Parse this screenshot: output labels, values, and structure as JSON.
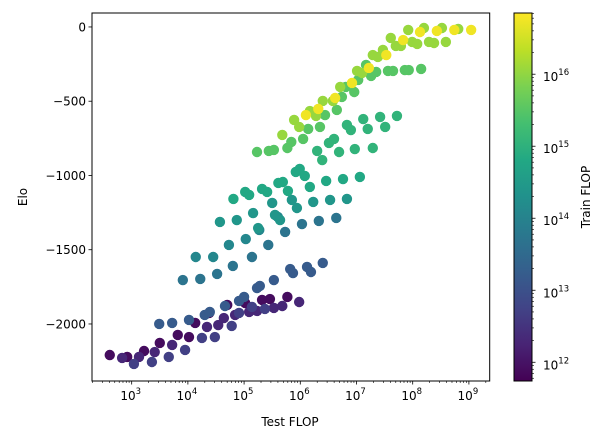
{
  "chart_data": {
    "type": "scatter",
    "title": "",
    "xlabel": "Test FLOP",
    "ylabel": "Elo",
    "xscale": "log",
    "xlim_log10": [
      2.294,
      9.37
    ],
    "ylim": [
      -2384,
      94
    ],
    "x_ticks": [
      {
        "base": "10",
        "exp": "3",
        "value_log10": 3
      },
      {
        "base": "10",
        "exp": "4",
        "value_log10": 4
      },
      {
        "base": "10",
        "exp": "5",
        "value_log10": 5
      },
      {
        "base": "10",
        "exp": "6",
        "value_log10": 6
      },
      {
        "base": "10",
        "exp": "7",
        "value_log10": 7
      },
      {
        "base": "10",
        "exp": "8",
        "value_log10": 8
      },
      {
        "base": "10",
        "exp": "9",
        "value_log10": 9
      }
    ],
    "y_ticks": [
      {
        "label": "0",
        "value": 0
      },
      {
        "label": "−500",
        "value": -500
      },
      {
        "label": "−1000",
        "value": -1000
      },
      {
        "label": "−1500",
        "value": -1500
      },
      {
        "label": "−2000",
        "value": -2000
      }
    ],
    "grid": false,
    "colorbar": {
      "label": "Train FLOP",
      "scale": "log",
      "colormap": "viridis",
      "range_log10": [
        11.74,
        16.85
      ],
      "ticks": [
        {
          "base": "10",
          "exp": "12",
          "value_log10": 12
        },
        {
          "base": "10",
          "exp": "13",
          "value_log10": 13
        },
        {
          "base": "10",
          "exp": "14",
          "value_log10": 14
        },
        {
          "base": "10",
          "exp": "15",
          "value_log10": 15
        },
        {
          "base": "10",
          "exp": "16",
          "value_log10": 16
        }
      ]
    },
    "series": [
      {
        "train_flop_log10": 11.9,
        "log10_test_flop": [
          2.61,
          2.92,
          3.22,
          3.5,
          3.82,
          4.02,
          4.13,
          4.38,
          4.7,
          5.02,
          5.32,
          5.46,
          5.77
        ],
        "elo": [
          -2209,
          -2222,
          -2182,
          -2128,
          -2074,
          -2088,
          -1993,
          -1926,
          -1872,
          -1859,
          -1838,
          -1832,
          -1818
        ]
      },
      {
        "train_flop_log10": 12.3,
        "log10_test_flop": [
          2.83,
          3.13,
          3.41,
          3.72,
          4.34,
          4.54,
          4.64,
          4.84,
          5.09,
          5.23,
          5.53,
          5.68,
          5.98
        ],
        "elo": [
          -2229,
          -2222,
          -2189,
          -2141,
          -2020,
          -2007,
          -1960,
          -1939,
          -1919,
          -1912,
          -1892,
          -1879,
          -1852
        ]
      },
      {
        "train_flop_log10": 12.7,
        "log10_test_flop": [
          3.04,
          3.36,
          3.66,
          3.95,
          4.25,
          4.48,
          4.78,
          4.91,
          5.14,
          5.37
        ],
        "elo": [
          -2269,
          -2256,
          -2222,
          -2175,
          -2094,
          -2088,
          -2013,
          -1926,
          -1885,
          -1899
        ]
      },
      {
        "train_flop_log10": 13.2,
        "log10_test_flop": [
          3.49,
          3.72,
          4.02,
          4.3,
          4.39,
          4.66,
          4.91,
          5.0,
          5.23,
          5.28,
          5.53,
          5.82,
          5.87,
          6.12,
          6.19,
          6.4
        ],
        "elo": [
          -2000,
          -1993,
          -1973,
          -1939,
          -1919,
          -1879,
          -1845,
          -1818,
          -1758,
          -1744,
          -1704,
          -1630,
          -1657,
          -1616,
          -1650,
          -1589
        ]
      },
      {
        "train_flop_log10": 13.7,
        "log10_test_flop": [
          3.91,
          4.22,
          4.52,
          4.8,
          5.14,
          5.43,
          5.73,
          6.03,
          6.33,
          6.64
        ],
        "elo": [
          -1704,
          -1697,
          -1663,
          -1609,
          -1549,
          -1468,
          -1380,
          -1327,
          -1306,
          -1286
        ]
      },
      {
        "train_flop_log10": 14.1,
        "log10_test_flop": [
          4.14,
          4.45,
          4.73,
          5.03,
          5.27,
          5.6
        ],
        "elo": [
          -1549,
          -1549,
          -1468,
          -1428,
          -1367,
          -1279
        ]
      },
      {
        "train_flop_log10": 14.4,
        "log10_test_flop": [
          4.57,
          4.87,
          5.16,
          5.25,
          5.55,
          5.64,
          5.5,
          5.85,
          5.94,
          6.23,
          6.53,
          6.83
        ],
        "elo": [
          -1313,
          -1300,
          -1253,
          -1354,
          -1266,
          -1300,
          -1185,
          -1165,
          -1219,
          -1178,
          -1165,
          -1158
        ]
      },
      {
        "train_flop_log10": 14.8,
        "log10_test_flop": [
          4.81,
          5.02,
          5.09,
          5.32,
          5.41,
          5.61,
          5.69,
          5.78,
          5.92,
          5.99,
          6.08,
          6.17,
          6.46,
          6.76,
          7.06
        ],
        "elo": [
          -1158,
          -1111,
          -1131,
          -1091,
          -1111,
          -1050,
          -1044,
          -1104,
          -976,
          -956,
          -1003,
          -1077,
          -1037,
          -1024,
          -1010
        ]
      },
      {
        "train_flop_log10": 15.05,
        "log10_test_flop": [
          6.3,
          6.39,
          6.51,
          6.6,
          6.69,
          6.83,
          6.9,
          6.97,
          7.12,
          7.2,
          7.29,
          7.42,
          7.51,
          7.72
        ],
        "elo": [
          -835,
          -896,
          -781,
          -754,
          -842,
          -660,
          -694,
          -822,
          -620,
          -687,
          -815,
          -606,
          -673,
          -599
        ]
      },
      {
        "train_flop_log10": 15.5,
        "log10_test_flop": [
          5.23,
          5.44,
          5.53,
          5.77,
          5.84,
          6.05,
          6.14,
          6.35,
          6.44,
          6.65,
          6.74,
          6.81,
          6.96,
          7.03,
          7.17,
          7.26,
          7.35,
          7.56,
          7.65,
          7.86,
          7.93,
          8.15
        ],
        "elo": [
          -842,
          -835,
          -828,
          -815,
          -774,
          -754,
          -687,
          -673,
          -593,
          -559,
          -471,
          -404,
          -438,
          -357,
          -256,
          -330,
          -303,
          -296,
          -296,
          -290,
          -290,
          -283
        ]
      },
      {
        "train_flop_log10": 16.05,
        "log10_test_flop": [
          5.68,
          5.89,
          5.98,
          6.17,
          6.28,
          6.4,
          6.58,
          6.71,
          7.01,
          7.1,
          7.29,
          7.38,
          7.47,
          7.61,
          7.7,
          7.79,
          7.92,
          7.99,
          8.08,
          8.2,
          8.29,
          8.38,
          8.52,
          8.59,
          8.81
        ],
        "elo": [
          -727,
          -626,
          -673,
          -566,
          -599,
          -498,
          -498,
          -404,
          -296,
          -310,
          -189,
          -202,
          -155,
          -74,
          -128,
          -128,
          -20,
          -101,
          -114,
          -7,
          -101,
          -108,
          -7,
          -101,
          -13
        ]
      },
      {
        "train_flop_log10": 16.75,
        "log10_test_flop": [
          6.1,
          6.32,
          6.62,
          6.92,
          7.22,
          7.53,
          7.83,
          8.13,
          8.43,
          8.74,
          9.04
        ],
        "elo": [
          -593,
          -552,
          -478,
          -377,
          -276,
          -189,
          -88,
          -34,
          -27,
          -20,
          -20
        ]
      }
    ]
  }
}
